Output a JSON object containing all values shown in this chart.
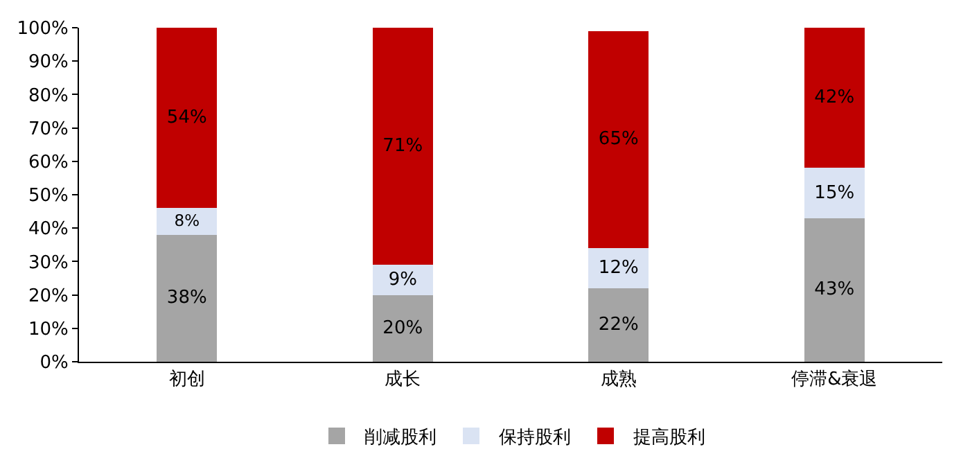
{
  "chart_data": {
    "type": "bar",
    "stacked": true,
    "legend": "bottom",
    "grid": false,
    "categories": [
      "初创",
      "成长",
      "成熟",
      "停滞&衰退"
    ],
    "series": [
      {
        "name": "削减股利",
        "color": "#a5a5a5",
        "values": [
          38,
          20,
          22,
          43
        ],
        "value_labels": [
          "38%",
          "20%",
          "22%",
          "43%"
        ]
      },
      {
        "name": "保持股利",
        "color": "#dae3f3",
        "values": [
          8,
          9,
          12,
          15
        ],
        "value_labels": [
          "8%",
          "9%",
          "12%",
          "15%"
        ]
      },
      {
        "name": "提高股利",
        "color": "#c00000",
        "values": [
          54,
          71,
          65,
          42
        ],
        "value_labels": [
          "54%",
          "71%",
          "65%",
          "42%"
        ]
      }
    ],
    "ylim": [
      0,
      100
    ],
    "yticks": [
      {
        "value": 0,
        "label": "0%"
      },
      {
        "value": 10,
        "label": "10%"
      },
      {
        "value": 20,
        "label": "20%"
      },
      {
        "value": 30,
        "label": "30%"
      },
      {
        "value": 40,
        "label": "40%"
      },
      {
        "value": 50,
        "label": "50%"
      },
      {
        "value": 60,
        "label": "60%"
      },
      {
        "value": 70,
        "label": "70%"
      },
      {
        "value": 80,
        "label": "80%"
      },
      {
        "value": 90,
        "label": "90%"
      },
      {
        "value": 100,
        "label": "100%"
      }
    ]
  }
}
